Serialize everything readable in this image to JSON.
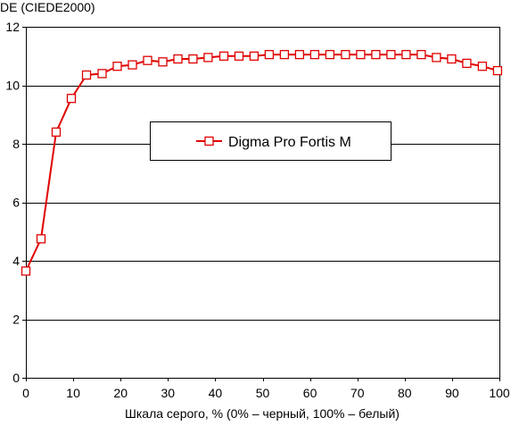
{
  "chart_data": {
    "type": "line",
    "ylabel": "DE (CIEDE2000)",
    "xlabel": "Шкала серого, % (0% – черный, 100% – белый)",
    "xlim": [
      0,
      100
    ],
    "ylim": [
      0,
      12
    ],
    "x_ticks": [
      0,
      10,
      20,
      30,
      40,
      50,
      60,
      70,
      80,
      90,
      100
    ],
    "y_ticks": [
      0,
      2,
      4,
      6,
      8,
      10,
      12
    ],
    "grid": "horizontal",
    "legend_position": "center",
    "series": [
      {
        "name": "Digma Pro Fortis M",
        "color": "#e00000",
        "marker": "square",
        "x": [
          0,
          3.2,
          6.4,
          9.6,
          12.8,
          16.1,
          19.3,
          22.5,
          25.7,
          28.9,
          32.1,
          35.3,
          38.5,
          41.8,
          45.0,
          48.2,
          51.4,
          54.6,
          57.8,
          61.0,
          64.2,
          67.5,
          70.7,
          73.9,
          77.1,
          80.3,
          83.5,
          86.7,
          89.9,
          93.1,
          96.4,
          99.6
        ],
        "y": [
          3.65,
          4.75,
          8.4,
          9.55,
          10.35,
          10.4,
          10.65,
          10.7,
          10.85,
          10.8,
          10.9,
          10.9,
          10.95,
          11.0,
          11.0,
          11.0,
          11.05,
          11.05,
          11.05,
          11.05,
          11.05,
          11.05,
          11.05,
          11.05,
          11.05,
          11.05,
          11.05,
          10.95,
          10.9,
          10.75,
          10.65,
          10.5
        ]
      }
    ]
  }
}
